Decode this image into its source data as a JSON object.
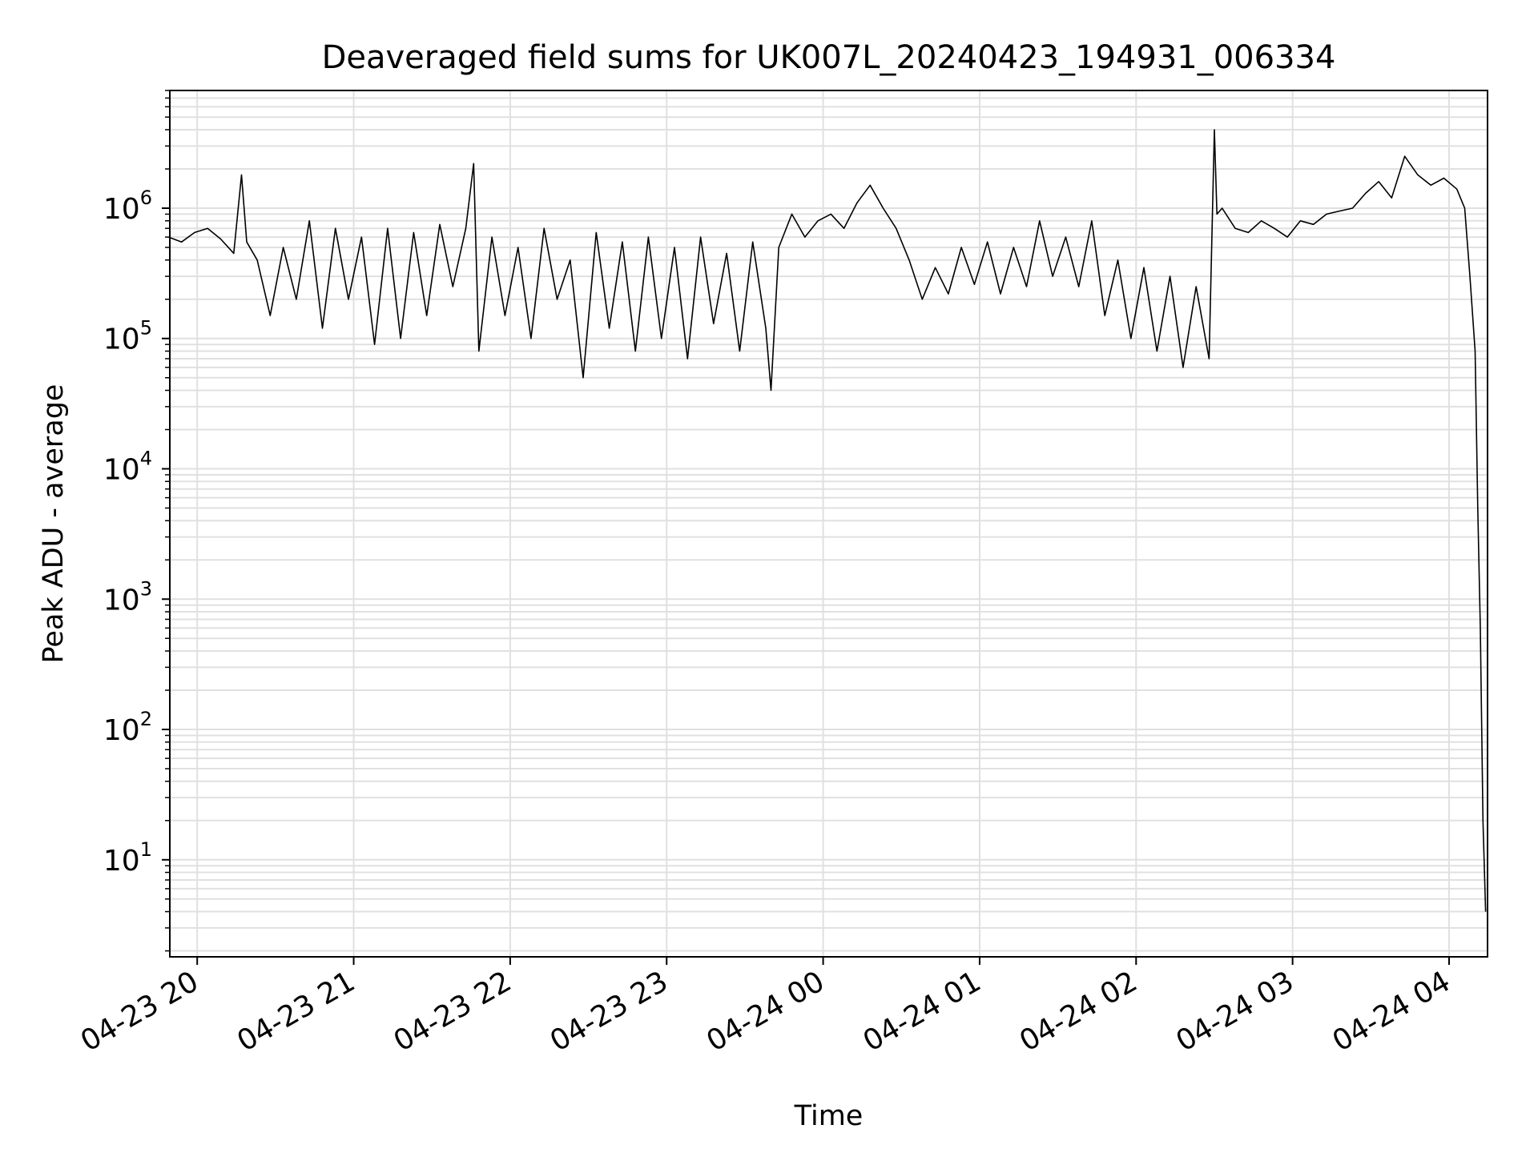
{
  "chart_data": {
    "type": "line",
    "title": "Deaveraged field sums for UK007L_20240423_194931_006334",
    "xlabel": "Time",
    "ylabel": "Peak ADU - average",
    "yscale": "log",
    "ylim": [
      1.8,
      8000000
    ],
    "xlim": [
      "2024-04-23 19:49:30",
      "2024-04-24 04:14:45"
    ],
    "grid": true,
    "grid_minor": true,
    "line_color": "#000000",
    "grid_color": "#e0e0e0",
    "x_ticks": [
      {
        "value": "2024-04-23 20:00",
        "label": "04-23 20"
      },
      {
        "value": "2024-04-23 21:00",
        "label": "04-23 21"
      },
      {
        "value": "2024-04-23 22:00",
        "label": "04-23 22"
      },
      {
        "value": "2024-04-23 23:00",
        "label": "04-23 23"
      },
      {
        "value": "2024-04-24 00:00",
        "label": "04-24 00"
      },
      {
        "value": "2024-04-24 01:00",
        "label": "04-24 01"
      },
      {
        "value": "2024-04-24 02:00",
        "label": "04-24 02"
      },
      {
        "value": "2024-04-24 03:00",
        "label": "04-24 03"
      },
      {
        "value": "2024-04-24 04:00",
        "label": "04-24 04"
      }
    ],
    "y_ticks": [
      {
        "value": 10,
        "base": "10",
        "exp": "1"
      },
      {
        "value": 100,
        "base": "10",
        "exp": "2"
      },
      {
        "value": 1000,
        "base": "10",
        "exp": "3"
      },
      {
        "value": 10000,
        "base": "10",
        "exp": "4"
      },
      {
        "value": 100000,
        "base": "10",
        "exp": "5"
      },
      {
        "value": 1000000,
        "base": "10",
        "exp": "6"
      }
    ],
    "series": [
      {
        "x": [
          "2024-04-23 19:49",
          "2024-04-23 19:54",
          "2024-04-23 19:59",
          "2024-04-23 20:04",
          "2024-04-23 20:09",
          "2024-04-23 20:14",
          "2024-04-23 20:17",
          "2024-04-23 20:19",
          "2024-04-23 20:23",
          "2024-04-23 20:28",
          "2024-04-23 20:33",
          "2024-04-23 20:38",
          "2024-04-23 20:43",
          "2024-04-23 20:48",
          "2024-04-23 20:53",
          "2024-04-23 20:58",
          "2024-04-23 21:03",
          "2024-04-23 21:08",
          "2024-04-23 21:13",
          "2024-04-23 21:18",
          "2024-04-23 21:23",
          "2024-04-23 21:28",
          "2024-04-23 21:33",
          "2024-04-23 21:38",
          "2024-04-23 21:43",
          "2024-04-23 21:46",
          "2024-04-23 21:48",
          "2024-04-23 21:53",
          "2024-04-23 21:58",
          "2024-04-23 22:03",
          "2024-04-23 22:08",
          "2024-04-23 22:13",
          "2024-04-23 22:18",
          "2024-04-23 22:23",
          "2024-04-23 22:28",
          "2024-04-23 22:33",
          "2024-04-23 22:38",
          "2024-04-23 22:43",
          "2024-04-23 22:48",
          "2024-04-23 22:53",
          "2024-04-23 22:58",
          "2024-04-23 23:03",
          "2024-04-23 23:08",
          "2024-04-23 23:13",
          "2024-04-23 23:18",
          "2024-04-23 23:23",
          "2024-04-23 23:28",
          "2024-04-23 23:33",
          "2024-04-23 23:38",
          "2024-04-23 23:40",
          "2024-04-23 23:43",
          "2024-04-23 23:48",
          "2024-04-23 23:53",
          "2024-04-23 23:58",
          "2024-04-24 00:03",
          "2024-04-24 00:08",
          "2024-04-24 00:13",
          "2024-04-24 00:18",
          "2024-04-24 00:23",
          "2024-04-24 00:28",
          "2024-04-24 00:33",
          "2024-04-24 00:38",
          "2024-04-24 00:43",
          "2024-04-24 00:48",
          "2024-04-24 00:53",
          "2024-04-24 00:58",
          "2024-04-24 01:03",
          "2024-04-24 01:08",
          "2024-04-24 01:13",
          "2024-04-24 01:18",
          "2024-04-24 01:23",
          "2024-04-24 01:28",
          "2024-04-24 01:33",
          "2024-04-24 01:38",
          "2024-04-24 01:43",
          "2024-04-24 01:48",
          "2024-04-24 01:53",
          "2024-04-24 01:58",
          "2024-04-24 02:03",
          "2024-04-24 02:08",
          "2024-04-24 02:13",
          "2024-04-24 02:18",
          "2024-04-24 02:23",
          "2024-04-24 02:28",
          "2024-04-24 02:30",
          "2024-04-24 02:31",
          "2024-04-24 02:33",
          "2024-04-24 02:38",
          "2024-04-24 02:43",
          "2024-04-24 02:48",
          "2024-04-24 02:53",
          "2024-04-24 02:58",
          "2024-04-24 03:03",
          "2024-04-24 03:08",
          "2024-04-24 03:13",
          "2024-04-24 03:18",
          "2024-04-24 03:23",
          "2024-04-24 03:28",
          "2024-04-24 03:33",
          "2024-04-24 03:38",
          "2024-04-24 03:43",
          "2024-04-24 03:48",
          "2024-04-24 03:53",
          "2024-04-24 03:58",
          "2024-04-24 04:03",
          "2024-04-24 04:06",
          "2024-04-24 04:08",
          "2024-04-24 04:10",
          "2024-04-24 04:11",
          "2024-04-24 04:12",
          "2024-04-24 04:13",
          "2024-04-24 04:14"
        ],
        "y": [
          600000,
          550000,
          650000,
          700000,
          580000,
          450000,
          1800000,
          550000,
          400000,
          150000,
          500000,
          200000,
          800000,
          120000,
          700000,
          200000,
          600000,
          90000,
          700000,
          100000,
          650000,
          150000,
          750000,
          250000,
          700000,
          2200000,
          80000,
          600000,
          150000,
          500000,
          100000,
          700000,
          200000,
          400000,
          50000,
          650000,
          120000,
          550000,
          80000,
          600000,
          100000,
          500000,
          70000,
          600000,
          130000,
          450000,
          80000,
          550000,
          120000,
          40000,
          500000,
          900000,
          600000,
          800000,
          900000,
          700000,
          1100000,
          1500000,
          1000000,
          700000,
          400000,
          200000,
          350000,
          220000,
          500000,
          260000,
          550000,
          220000,
          500000,
          250000,
          800000,
          300000,
          600000,
          250000,
          800000,
          150000,
          400000,
          100000,
          350000,
          80000,
          300000,
          60000,
          250000,
          70000,
          4000000,
          900000,
          1000000,
          700000,
          650000,
          800000,
          700000,
          600000,
          800000,
          750000,
          900000,
          950000,
          1000000,
          1300000,
          1600000,
          1200000,
          2500000,
          1800000,
          1500000,
          1700000,
          1400000,
          1000000,
          300000,
          80000,
          5000,
          600,
          20,
          4
        ]
      }
    ]
  }
}
